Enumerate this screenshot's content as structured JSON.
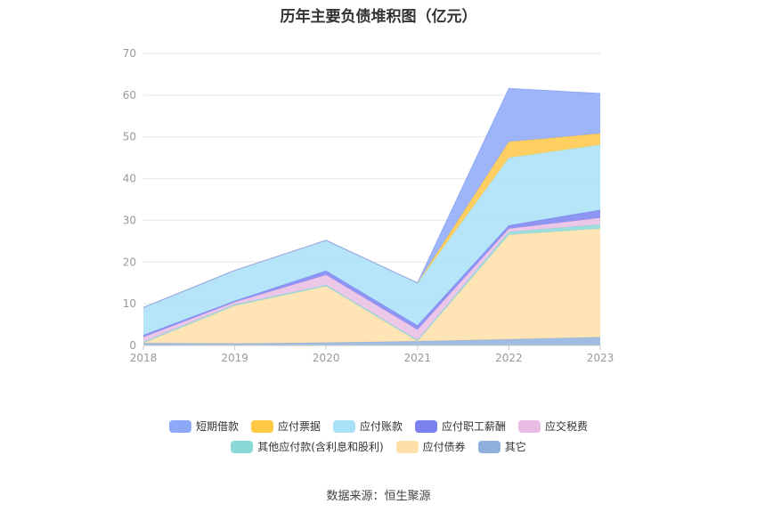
{
  "title": "历年主要负债堆积图（亿元）",
  "source": "数据来源：恒生聚源",
  "chart_data": {
    "type": "area",
    "stacked": true,
    "categories": [
      "2018",
      "2019",
      "2020",
      "2021",
      "2022",
      "2023"
    ],
    "ylim": [
      0,
      70
    ],
    "yticks": [
      0,
      10,
      20,
      30,
      40,
      50,
      60,
      70
    ],
    "grid": true,
    "legend_position": "bottom",
    "series": [
      {
        "name": "其它",
        "color": "#8fb0dc",
        "values": [
          0.6,
          0.5,
          0.7,
          1.0,
          1.5,
          2.0
        ]
      },
      {
        "name": "应付债券",
        "color": "#ffdfa8",
        "values": [
          0.0,
          9.0,
          13.5,
          0.0,
          25.0,
          26.0
        ]
      },
      {
        "name": "其他应付款(含利息和股利)",
        "color": "#8bd8d8",
        "values": [
          0.3,
          0.3,
          0.3,
          0.3,
          0.7,
          1.0
        ]
      },
      {
        "name": "应交税费",
        "color": "#e9bde3",
        "values": [
          1.1,
          0.6,
          2.4,
          2.5,
          0.8,
          1.6
        ]
      },
      {
        "name": "应付职工薪酬",
        "color": "#7b82f0",
        "values": [
          0.5,
          0.3,
          1.0,
          1.0,
          0.8,
          1.9
        ]
      },
      {
        "name": "应付账款",
        "color": "#a9e1f8",
        "values": [
          6.6,
          7.3,
          7.3,
          10.2,
          16.2,
          15.6
        ]
      },
      {
        "name": "应付票据",
        "color": "#ffc845",
        "values": [
          0.0,
          0.0,
          0.0,
          0.0,
          3.8,
          2.7
        ]
      },
      {
        "name": "短期借款",
        "color": "#8ea8f8",
        "values": [
          0.0,
          0.0,
          0.0,
          0.0,
          12.8,
          9.6
        ]
      }
    ],
    "legend_order": [
      "短期借款",
      "应付票据",
      "应付账款",
      "应付职工薪酬",
      "应交税费",
      "其他应付款(含利息和股利)",
      "应付债券",
      "其它"
    ]
  }
}
